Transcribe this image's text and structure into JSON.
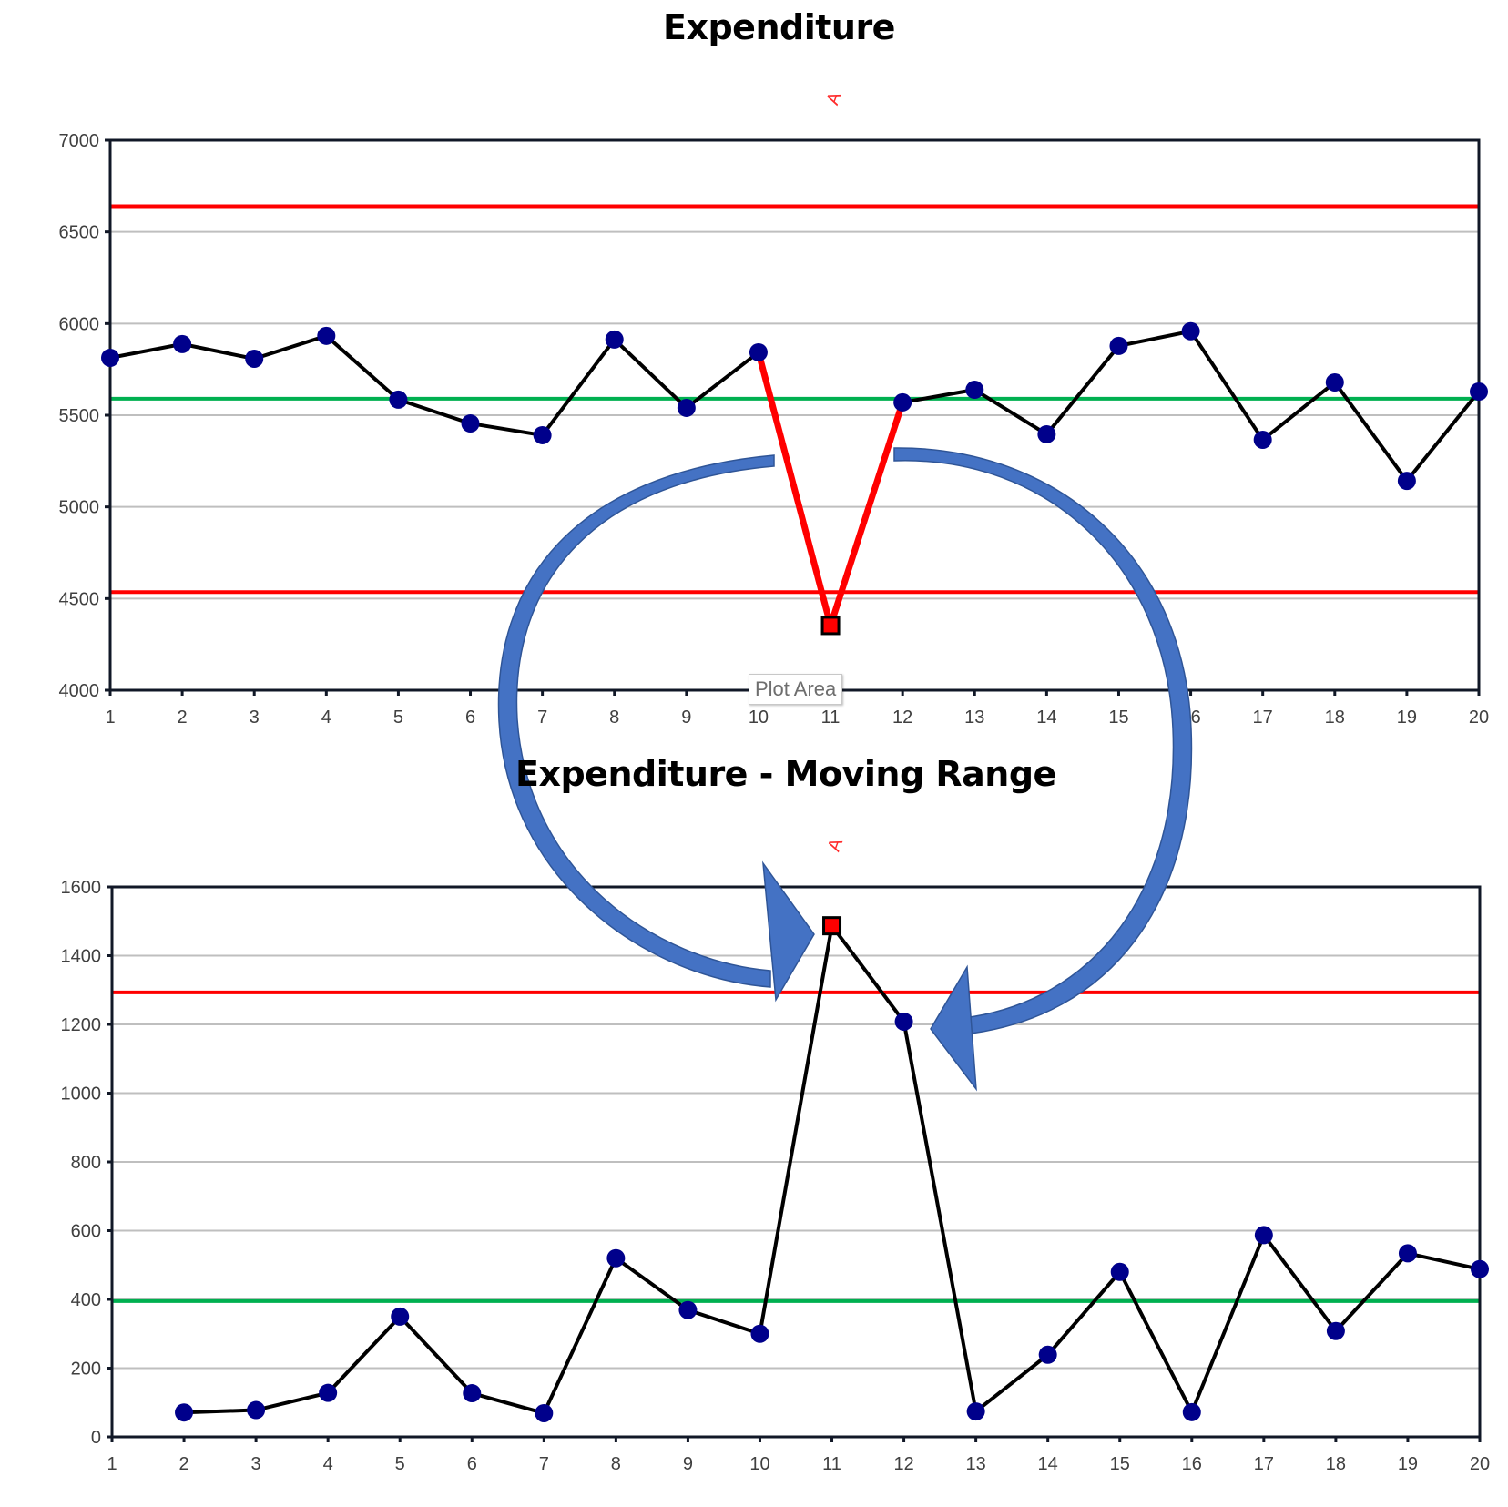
{
  "chart_data": [
    {
      "type": "line",
      "title": "Expenditure",
      "xlabel": "",
      "ylabel": "",
      "x": [
        1,
        2,
        3,
        4,
        5,
        6,
        7,
        8,
        9,
        10,
        11,
        12,
        13,
        14,
        15,
        16,
        17,
        18,
        19,
        20
      ],
      "ylim": [
        4000,
        7000
      ],
      "yticks": [
        4000,
        4500,
        5000,
        5500,
        6000,
        6500,
        7000
      ],
      "grid": true,
      "series": [
        {
          "name": "Expenditure",
          "values": [
            5813,
            5888,
            5808,
            5933,
            5585,
            5455,
            5391,
            5913,
            5540,
            5843,
            4353,
            5570,
            5639,
            5396,
            5878,
            5958,
            5366,
            5679,
            5142,
            5629
          ],
          "color": "#000000",
          "marker_color": "#00008b"
        }
      ],
      "control_limits": {
        "ucl": 6640,
        "center": 5590,
        "lcl": 4535,
        "limit_color": "#ff0000",
        "center_color": "#00b050"
      },
      "highlight": {
        "point_index": 10,
        "x": 11,
        "value": 4353,
        "segment_color": "#ff0000",
        "annotation": "A"
      }
    },
    {
      "type": "line",
      "title": "Expenditure - Moving Range",
      "xlabel": "",
      "ylabel": "",
      "x": [
        1,
        2,
        3,
        4,
        5,
        6,
        7,
        8,
        9,
        10,
        11,
        12,
        13,
        14,
        15,
        16,
        17,
        18,
        19,
        20
      ],
      "ylim": [
        0,
        1600
      ],
      "yticks": [
        0,
        200,
        400,
        600,
        800,
        1000,
        1200,
        1400,
        1600
      ],
      "grid": true,
      "series": [
        {
          "name": "Moving Range",
          "values": [
            null,
            71,
            78,
            128,
            350,
            127,
            69,
            520,
            369,
            300,
            1487,
            1208,
            74,
            239,
            480,
            72,
            587,
            308,
            534,
            488
          ],
          "color": "#000000",
          "marker_color": "#00008b"
        }
      ],
      "control_limits": {
        "ucl": 1293,
        "center": 395,
        "limit_color": "#ff0000",
        "center_color": "#00b050"
      },
      "highlight": {
        "point_index": 10,
        "x": 11,
        "value": 1487,
        "annotation": "A"
      }
    }
  ],
  "titles": {
    "top": "Expenditure",
    "bottom": "Expenditure - Moving Range"
  },
  "tooltip": {
    "text": "Plot Area"
  },
  "annotations": {
    "arrow_color": "#4472c4",
    "arrows": [
      "left-curved-arrow",
      "right-curved-arrow"
    ],
    "marker_label": "A"
  }
}
